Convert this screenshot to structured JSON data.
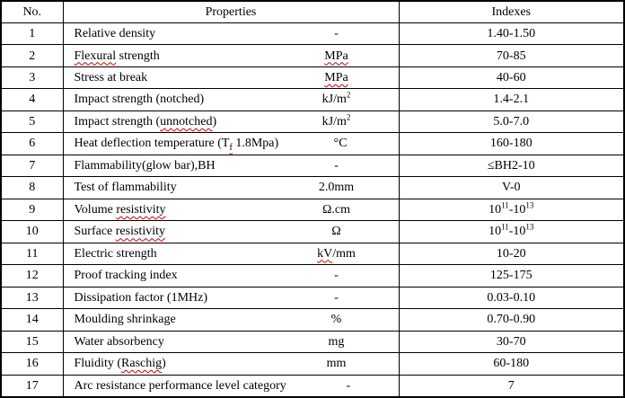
{
  "colors": {
    "background": "#ffffff",
    "border": "#000000",
    "text": "#000000",
    "squiggle": "#cc0000"
  },
  "table": {
    "headers": {
      "no": "No.",
      "properties": "Properties",
      "indexes": "Indexes"
    },
    "rows": [
      {
        "no": "1",
        "property": [
          {
            "t": "Relative density"
          }
        ],
        "unit": [
          {
            "t": "-"
          }
        ],
        "index": [
          {
            "t": "1.40-1.50"
          }
        ]
      },
      {
        "no": "2",
        "property": [
          {
            "t": "Flexural",
            "sq": true
          },
          {
            "t": " strength"
          }
        ],
        "unit": [
          {
            "t": "MPa",
            "sq": true
          }
        ],
        "index": [
          {
            "t": "70-85"
          }
        ]
      },
      {
        "no": "3",
        "property": [
          {
            "t": "Stress at break"
          }
        ],
        "unit": [
          {
            "t": "MPa",
            "sq": true
          }
        ],
        "index": [
          {
            "t": "40-60"
          }
        ]
      },
      {
        "no": "4",
        "property": [
          {
            "t": "Impact strength (notched)"
          }
        ],
        "unit": [
          {
            "t": "kJ/m"
          },
          {
            "t": "2",
            "sup": true
          }
        ],
        "index": [
          {
            "t": "1.4-2.1"
          }
        ]
      },
      {
        "no": "5",
        "property": [
          {
            "t": "Impact strength ("
          },
          {
            "t": "unnotched",
            "sq": true
          },
          {
            "t": ")"
          }
        ],
        "unit": [
          {
            "t": "kJ/m"
          },
          {
            "t": "2",
            "sup": true
          }
        ],
        "index": [
          {
            "t": "5.0-7.0"
          }
        ]
      },
      {
        "no": "6",
        "property": [
          {
            "t": "Heat deflection temperature (T"
          },
          {
            "t": "f",
            "sub": true,
            "sq": true
          },
          {
            "t": " 1.8Mpa)"
          }
        ],
        "unit": [
          {
            "t": "°C"
          }
        ],
        "index": [
          {
            "t": "160-180"
          }
        ]
      },
      {
        "no": "7",
        "property": [
          {
            "t": "Flammability(glow bar),BH"
          }
        ],
        "unit": [
          {
            "t": "-"
          }
        ],
        "index": [
          {
            "t": "≤BH2-10"
          }
        ]
      },
      {
        "no": "8",
        "property": [
          {
            "t": "Test of flammability"
          }
        ],
        "unit": [
          {
            "t": "2.0mm"
          }
        ],
        "index": [
          {
            "t": "V-0"
          }
        ]
      },
      {
        "no": "9",
        "property": [
          {
            "t": "Volume "
          },
          {
            "t": "resistivity",
            "sq": true
          }
        ],
        "unit": [
          {
            "t": "Ω.cm"
          }
        ],
        "index": [
          {
            "t": "10"
          },
          {
            "t": "11",
            "sup": true
          },
          {
            "t": "-10"
          },
          {
            "t": "13",
            "sup": true
          }
        ]
      },
      {
        "no": "10",
        "property": [
          {
            "t": "Surface "
          },
          {
            "t": "resistivity",
            "sq": true
          }
        ],
        "unit": [
          {
            "t": "Ω"
          }
        ],
        "index": [
          {
            "t": "10"
          },
          {
            "t": "11",
            "sup": true
          },
          {
            "t": "-10"
          },
          {
            "t": "13",
            "sup": true
          }
        ]
      },
      {
        "no": "11",
        "property": [
          {
            "t": "Electric strength"
          }
        ],
        "unit": [
          {
            "t": "kV",
            "sq": true
          },
          {
            "t": "/mm"
          }
        ],
        "index": [
          {
            "t": "10-20"
          }
        ]
      },
      {
        "no": "12",
        "property": [
          {
            "t": "Proof tracking index"
          }
        ],
        "unit": [
          {
            "t": "-"
          }
        ],
        "index": [
          {
            "t": "125-175"
          }
        ]
      },
      {
        "no": "13",
        "property": [
          {
            "t": "Dissipation factor (1MHz)"
          }
        ],
        "unit": [
          {
            "t": "-"
          }
        ],
        "index": [
          {
            "t": "0.03-0.10"
          }
        ]
      },
      {
        "no": "14",
        "property": [
          {
            "t": "Moulding shrinkage"
          }
        ],
        "unit": [
          {
            "t": "%"
          }
        ],
        "index": [
          {
            "t": "0.70-0.90"
          }
        ]
      },
      {
        "no": "15",
        "property": [
          {
            "t": "Water absorbency"
          }
        ],
        "unit": [
          {
            "t": "mg"
          }
        ],
        "index": [
          {
            "t": "30-70"
          }
        ]
      },
      {
        "no": "16",
        "property": [
          {
            "t": "Fluidity ("
          },
          {
            "t": "Raschig",
            "sq": true
          },
          {
            "t": ")"
          }
        ],
        "unit": [
          {
            "t": "mm"
          }
        ],
        "index": [
          {
            "t": "60-180"
          }
        ]
      },
      {
        "no": "17",
        "property": [
          {
            "t": "Arc resistance performance level category"
          }
        ],
        "unit": [
          {
            "t": "-"
          }
        ],
        "index": [
          {
            "t": "7"
          }
        ]
      }
    ]
  }
}
